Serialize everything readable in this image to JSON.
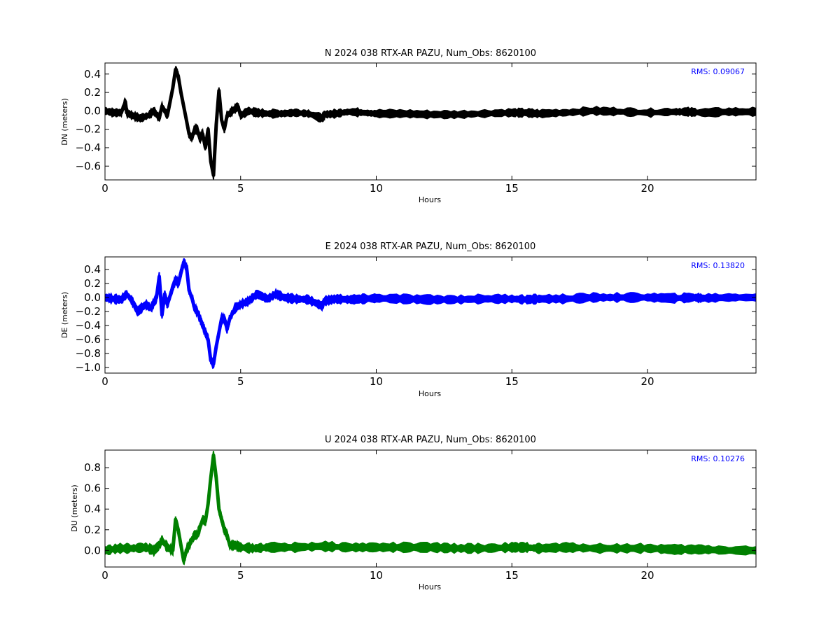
{
  "chart_data": [
    {
      "type": "line",
      "title": "N 2024 038 RTX-AR  PAZU, Num_Obs: 8620100",
      "xlabel": "Hours",
      "ylabel": "DN (meters)",
      "xlim": [
        0,
        24
      ],
      "ylim": [
        -0.75,
        0.52
      ],
      "xticks": [
        0,
        5,
        10,
        15,
        20
      ],
      "yticks": [
        0.4,
        0.2,
        0.0,
        -0.2,
        -0.4,
        -0.6
      ],
      "ytick_labels": [
        "0.4",
        "0.2",
        "0.0",
        "−0.2",
        "−0.4",
        "−0.6"
      ],
      "color": "#000000",
      "rms_label": "RMS:  0.09067",
      "rms_color": "#0000ff",
      "grid": false,
      "series": [
        {
          "x": [
            0,
            0.3,
            0.6,
            0.75,
            0.8,
            1.0,
            1.3,
            1.6,
            1.8,
            2.0,
            2.1,
            2.3,
            2.5,
            2.6,
            2.7,
            2.8,
            2.9,
            3.0,
            3.1,
            3.2,
            3.3,
            3.4,
            3.5,
            3.6,
            3.7,
            3.8,
            3.9,
            4.0,
            4.1,
            4.2,
            4.3,
            4.4,
            4.5,
            4.7,
            4.9,
            5.0,
            5.3,
            5.6,
            6.0,
            6.5,
            7.0,
            7.5,
            8.0,
            8.1,
            8.5,
            9.0,
            9.5,
            10.0,
            11.0,
            12.0,
            13.0,
            14.0,
            15.0,
            15.5,
            16.0,
            17.0,
            18.0,
            19.0,
            20.0,
            21.0,
            21.5,
            22.0,
            23.0,
            24.0
          ],
          "y": [
            0.0,
            -0.02,
            -0.02,
            0.1,
            -0.02,
            -0.05,
            -0.08,
            -0.05,
            0.0,
            -0.08,
            0.05,
            -0.05,
            0.25,
            0.45,
            0.38,
            0.2,
            0.05,
            -0.1,
            -0.25,
            -0.3,
            -0.2,
            -0.2,
            -0.3,
            -0.25,
            -0.4,
            -0.2,
            -0.55,
            -0.7,
            -0.15,
            0.22,
            -0.1,
            -0.2,
            -0.05,
            0.0,
            0.05,
            -0.05,
            0.0,
            -0.02,
            -0.03,
            -0.03,
            -0.02,
            -0.03,
            -0.08,
            -0.04,
            -0.03,
            -0.01,
            -0.02,
            -0.03,
            -0.03,
            -0.04,
            -0.04,
            -0.03,
            -0.02,
            -0.02,
            -0.03,
            -0.02,
            0.0,
            -0.01,
            -0.02,
            -0.01,
            -0.01,
            -0.02,
            -0.01,
            -0.01
          ],
          "band": 0.035
        }
      ]
    },
    {
      "type": "line",
      "title": "E 2024 038 RTX-AR  PAZU, Num_Obs: 8620100",
      "xlabel": "Hours",
      "ylabel": "DE (meters)",
      "xlim": [
        0,
        24
      ],
      "ylim": [
        -1.08,
        0.58
      ],
      "xticks": [
        0,
        5,
        10,
        15,
        20
      ],
      "yticks": [
        0.4,
        0.2,
        0.0,
        -0.2,
        -0.4,
        -0.6,
        -0.8,
        -1.0
      ],
      "ytick_labels": [
        "0.4",
        "0.2",
        "0.0",
        "−0.2",
        "−0.4",
        "−0.6",
        "−0.8",
        "−1.0"
      ],
      "color": "#0000ff",
      "rms_label": "RMS:  0.13820",
      "rms_color": "#0000ff",
      "grid": false,
      "series": [
        {
          "x": [
            0,
            0.3,
            0.6,
            0.8,
            1.0,
            1.2,
            1.5,
            1.7,
            1.9,
            2.0,
            2.1,
            2.2,
            2.3,
            2.5,
            2.6,
            2.7,
            2.8,
            2.9,
            3.0,
            3.1,
            3.2,
            3.3,
            3.4,
            3.5,
            3.6,
            3.7,
            3.8,
            3.9,
            4.0,
            4.1,
            4.2,
            4.3,
            4.4,
            4.5,
            4.6,
            4.8,
            5.0,
            5.3,
            5.6,
            6.0,
            6.3,
            6.6,
            7.0,
            7.5,
            8.0,
            8.1,
            8.5,
            9.0,
            9.5,
            10.0,
            11.0,
            12.0,
            13.0,
            14.0,
            15.0,
            15.5,
            16.0,
            17.0,
            18.0,
            19.0,
            20.0,
            21.0,
            21.7,
            22.0,
            23.0,
            24.0
          ],
          "y": [
            0.0,
            -0.02,
            -0.03,
            0.05,
            -0.05,
            -0.2,
            -0.1,
            -0.15,
            0.0,
            0.3,
            -0.25,
            0.05,
            -0.1,
            0.15,
            0.25,
            0.2,
            0.35,
            0.5,
            0.45,
            0.1,
            0.0,
            -0.15,
            -0.2,
            -0.3,
            -0.4,
            -0.5,
            -0.6,
            -0.9,
            -0.95,
            -0.7,
            -0.5,
            -0.3,
            -0.3,
            -0.45,
            -0.3,
            -0.15,
            -0.1,
            -0.05,
            0.05,
            -0.02,
            0.05,
            0.0,
            -0.02,
            -0.03,
            -0.12,
            -0.05,
            -0.02,
            -0.03,
            -0.02,
            -0.01,
            -0.02,
            -0.03,
            -0.03,
            -0.02,
            -0.02,
            -0.03,
            -0.02,
            -0.02,
            0.0,
            0.0,
            0.0,
            -0.01,
            0.0,
            -0.01,
            0.0,
            0.0
          ],
          "band": 0.05
        }
      ]
    },
    {
      "type": "line",
      "title": "U 2024 038 RTX-AR  PAZU, Num_Obs: 8620100",
      "xlabel": "Hours",
      "ylabel": "DU (meters)",
      "xlim": [
        0,
        24
      ],
      "ylim": [
        -0.16,
        0.97
      ],
      "xticks": [
        0,
        5,
        10,
        15,
        20
      ],
      "yticks": [
        0.8,
        0.6,
        0.4,
        0.2,
        0.0
      ],
      "ytick_labels": [
        "0.8",
        "0.6",
        "0.4",
        "0.2",
        "0.0"
      ],
      "color": "#008000",
      "rms_label": "RMS:  0.10276",
      "rms_color": "#0000ff",
      "grid": false,
      "series": [
        {
          "x": [
            0,
            0.5,
            1.0,
            1.5,
            1.8,
            2.0,
            2.1,
            2.3,
            2.5,
            2.6,
            2.7,
            2.8,
            2.9,
            3.0,
            3.1,
            3.2,
            3.3,
            3.4,
            3.5,
            3.6,
            3.7,
            3.8,
            3.9,
            4.0,
            4.1,
            4.2,
            4.3,
            4.4,
            4.5,
            4.6,
            4.8,
            5.0,
            5.5,
            6.0,
            7.0,
            8.0,
            9.0,
            10.0,
            11.0,
            12.0,
            13.0,
            14.0,
            15.0,
            15.5,
            16.0,
            17.0,
            18.0,
            19.0,
            20.0,
            21.0,
            22.0,
            23.0,
            24.0
          ],
          "y": [
            0.0,
            0.02,
            0.02,
            0.03,
            0.0,
            0.05,
            0.1,
            0.03,
            0.0,
            0.3,
            0.2,
            0.05,
            -0.1,
            0.0,
            0.05,
            0.1,
            0.15,
            0.15,
            0.22,
            0.3,
            0.28,
            0.45,
            0.7,
            0.92,
            0.7,
            0.4,
            0.3,
            0.2,
            0.15,
            0.05,
            0.05,
            0.03,
            0.02,
            0.03,
            0.03,
            0.04,
            0.03,
            0.03,
            0.03,
            0.03,
            0.02,
            0.02,
            0.03,
            0.03,
            0.02,
            0.03,
            0.02,
            0.02,
            0.02,
            0.01,
            0.01,
            0.0,
            0.0
          ],
          "band": 0.035
        }
      ]
    }
  ]
}
